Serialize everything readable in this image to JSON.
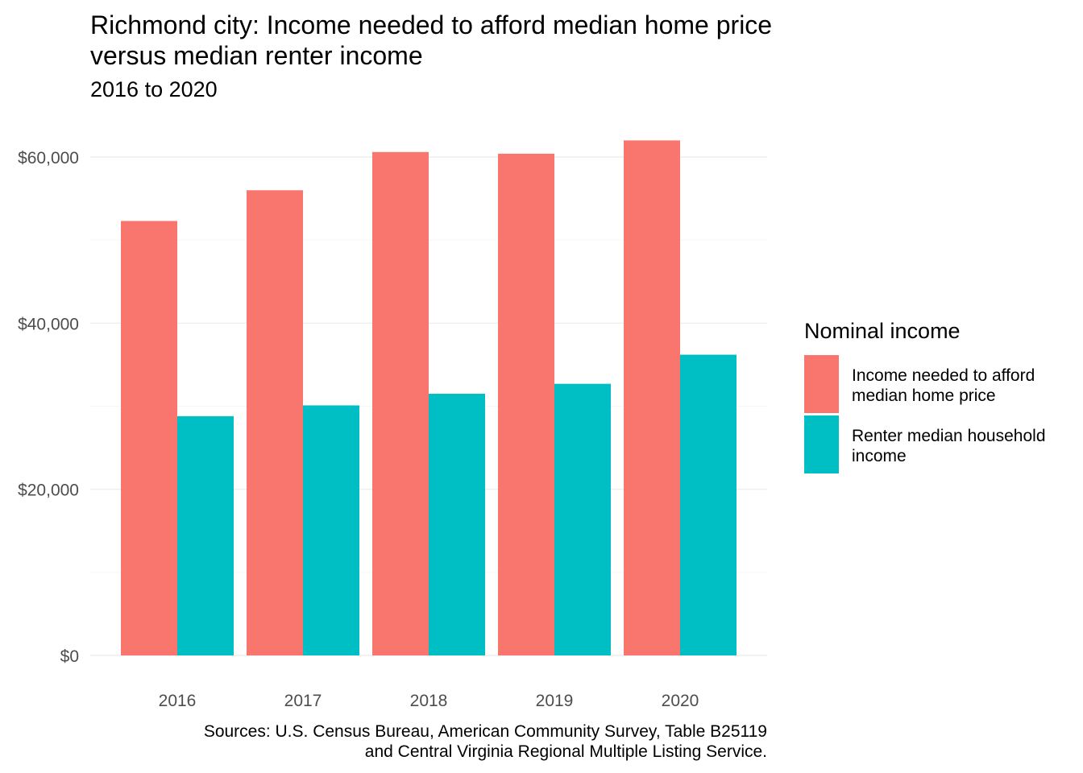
{
  "chart_data": {
    "type": "bar",
    "title": "Richmond city: Income needed to afford median home price\nversus median renter income",
    "subtitle": "2016 to 2020",
    "caption": "Sources: U.S. Census Bureau, American Community Survey, Table B25119\nand Central Virginia Regional Multiple Listing Service.",
    "categories": [
      "2016",
      "2017",
      "2018",
      "2019",
      "2020"
    ],
    "series": [
      {
        "name": "Income needed to afford median home price",
        "color": "#F8766D",
        "values": [
          52300,
          56000,
          60600,
          60400,
          62000
        ]
      },
      {
        "name": "Renter median household income",
        "color": "#00BFC4",
        "values": [
          28800,
          30100,
          31500,
          32700,
          36200
        ]
      }
    ],
    "yticks": [
      0,
      20000,
      40000,
      60000
    ],
    "ytick_labels": [
      "$0",
      "$20,000",
      "$40,000",
      "$60,000"
    ],
    "ylim": [
      0,
      62000
    ],
    "legend_title": "Nominal income",
    "legend_labels": [
      "Income needed to afford\nmedian home price",
      "Renter median household\nincome"
    ],
    "legend_position": "right",
    "grid": true
  }
}
